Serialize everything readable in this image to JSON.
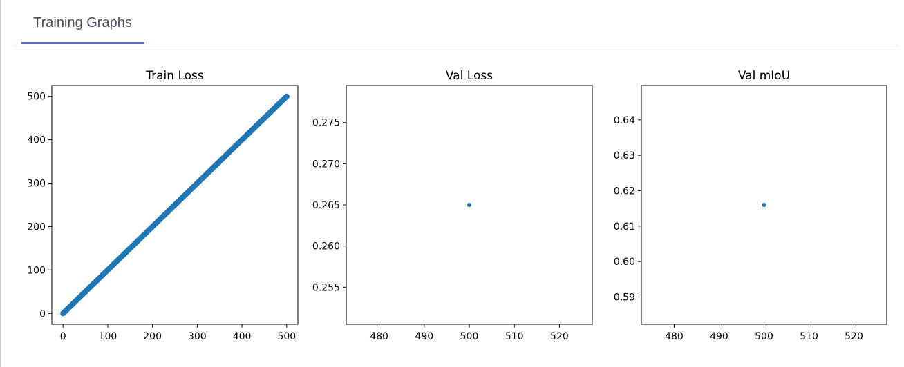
{
  "tabs": [
    {
      "label": "Training Graphs"
    }
  ],
  "colors": {
    "marker": "#1f77b4",
    "tab_accent": "#5a67c7"
  },
  "chart_data": [
    {
      "type": "scatter",
      "title": "Train Loss",
      "xlabel": "",
      "ylabel": "",
      "xlim": [
        -25,
        525
      ],
      "ylim": [
        -25,
        525
      ],
      "xticks": [
        0,
        100,
        200,
        300,
        400,
        500
      ],
      "yticks": [
        0,
        100,
        200,
        300,
        400,
        500
      ],
      "xtick_labels": [
        "0",
        "100",
        "200",
        "300",
        "400",
        "500"
      ],
      "ytick_labels": [
        "0",
        "100",
        "200",
        "300",
        "400",
        "500"
      ],
      "series": [
        {
          "x_range": [
            0,
            500
          ],
          "y_equals_x": true,
          "point_count": 500
        }
      ],
      "grid": false
    },
    {
      "type": "scatter",
      "title": "Val Loss",
      "xlabel": "",
      "ylabel": "",
      "xlim": [
        472.7,
        527.3
      ],
      "ylim": [
        0.2505,
        0.2795
      ],
      "xticks": [
        480,
        490,
        500,
        510,
        520
      ],
      "yticks": [
        0.255,
        0.26,
        0.265,
        0.27,
        0.275
      ],
      "xtick_labels": [
        "480",
        "490",
        "500",
        "510",
        "520"
      ],
      "ytick_labels": [
        "0.255",
        "0.260",
        "0.265",
        "0.270",
        "0.275"
      ],
      "series": [
        {
          "x": [
            500
          ],
          "y": [
            0.265
          ]
        }
      ],
      "grid": false
    },
    {
      "type": "scatter",
      "title": "Val mIoU",
      "xlabel": "",
      "ylabel": "",
      "xlim": [
        472.7,
        527.3
      ],
      "ylim": [
        0.5823,
        0.6497
      ],
      "xticks": [
        480,
        490,
        500,
        510,
        520
      ],
      "yticks": [
        0.59,
        0.6,
        0.61,
        0.62,
        0.63,
        0.64
      ],
      "xtick_labels": [
        "480",
        "490",
        "500",
        "510",
        "520"
      ],
      "ytick_labels": [
        "0.59",
        "0.60",
        "0.61",
        "0.62",
        "0.63",
        "0.64"
      ],
      "series": [
        {
          "x": [
            500
          ],
          "y": [
            0.616
          ]
        }
      ],
      "grid": false
    }
  ]
}
